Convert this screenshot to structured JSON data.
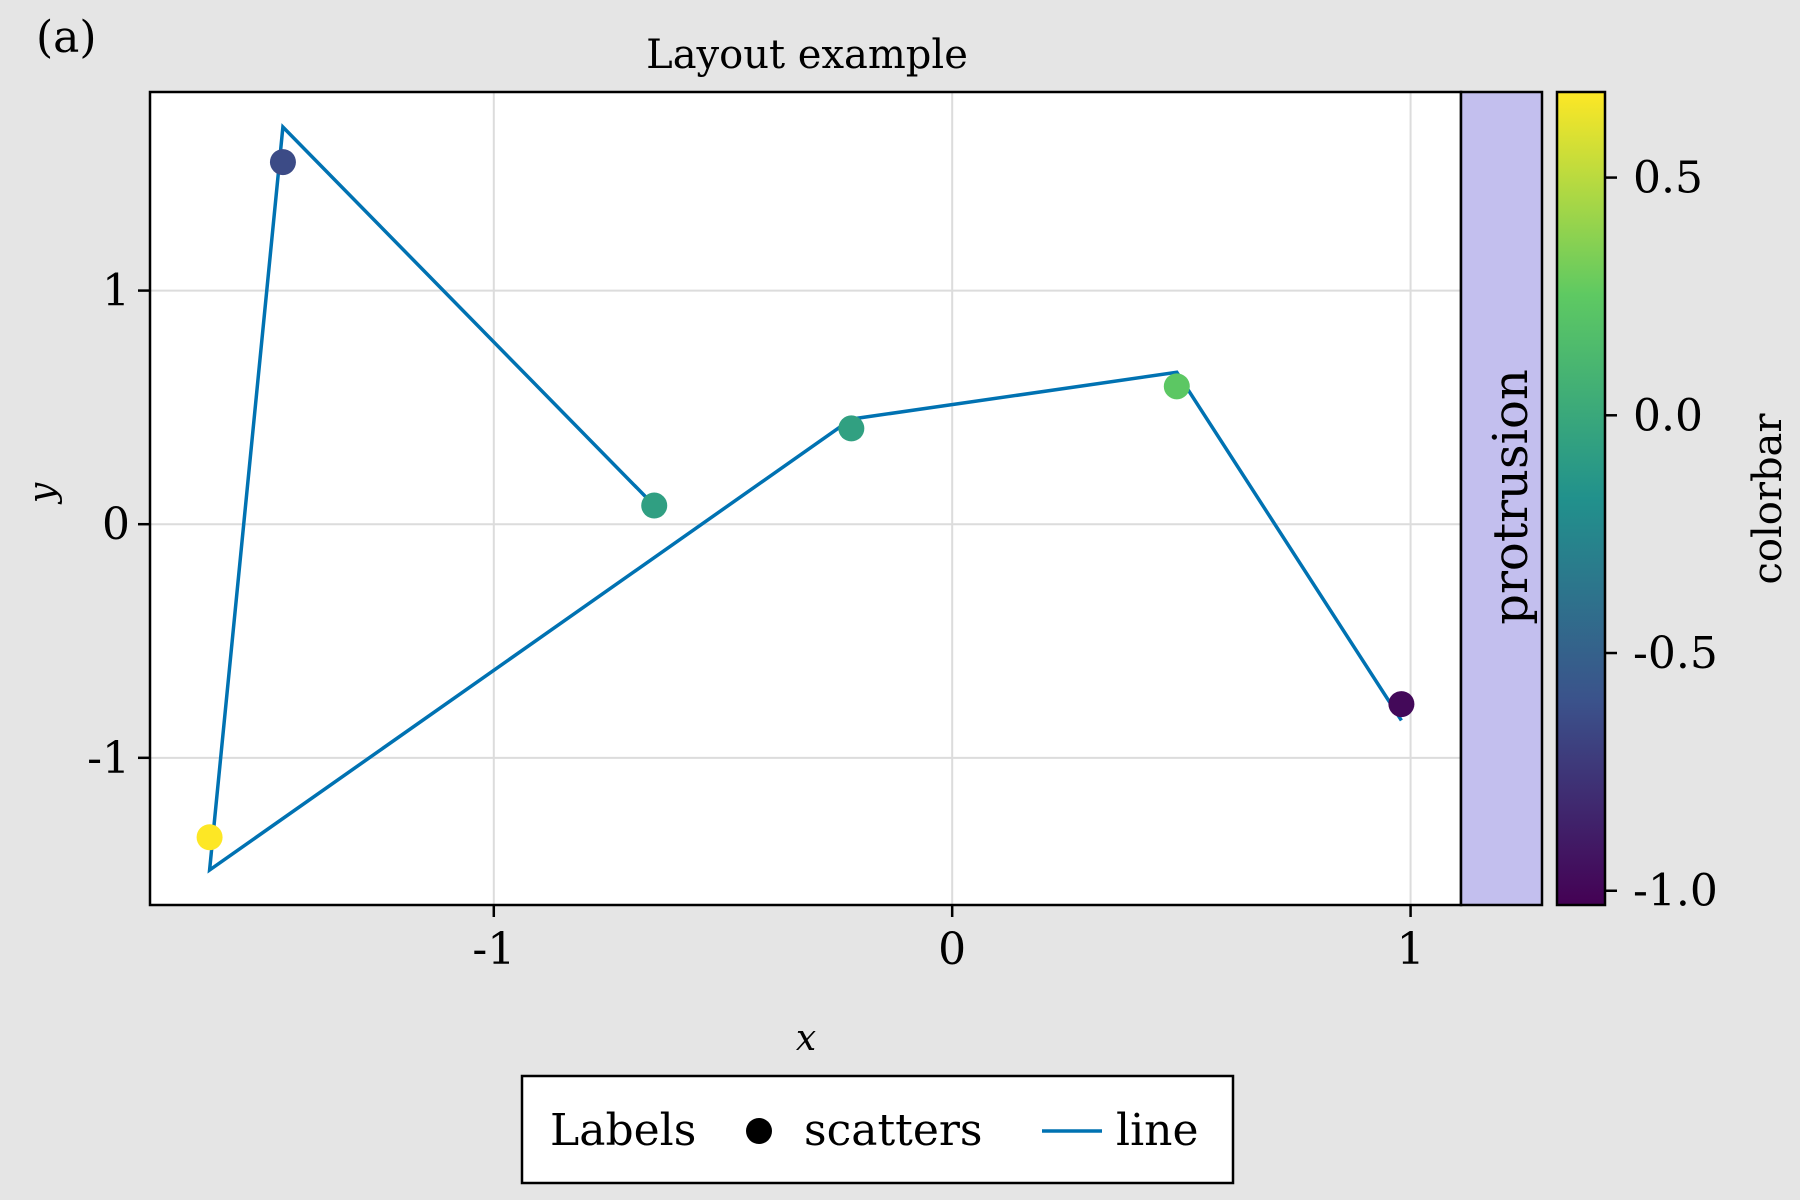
{
  "panel_label": "(a)",
  "protrusion_label": "protrusion",
  "colors": {
    "background": "#e5e5e5",
    "plot_background": "#ffffff",
    "grid": "#dcdcdc",
    "line": "#0072b2",
    "protrusion_fill": "#c3bfee",
    "colormap": "viridis",
    "colormap_stops": [
      "#440154",
      "#3b528b",
      "#21918c",
      "#5ec962",
      "#fde725"
    ]
  },
  "chart_data": {
    "type": "scatter",
    "title": "Layout example",
    "xlabel": "x",
    "ylabel": "y",
    "xlim": [
      -1.75,
      1.11
    ],
    "ylim": [
      -1.63,
      1.85
    ],
    "xticks": [
      -1,
      0,
      1
    ],
    "xtick_labels": [
      "-1",
      "0",
      "1"
    ],
    "yticks": [
      -1,
      0,
      1
    ],
    "ytick_labels": [
      "-1",
      "0",
      "1"
    ],
    "grid": true,
    "series": [
      {
        "name": "scatters",
        "kind": "scatter",
        "x": [
          -1.62,
          -1.46,
          -0.65,
          -0.22,
          0.49,
          0.98
        ],
        "y": [
          -1.34,
          1.55,
          0.08,
          0.41,
          0.59,
          -0.77
        ],
        "color_values": [
          0.68,
          -0.64,
          -0.07,
          -0.06,
          0.24,
          -0.99
        ]
      },
      {
        "name": "line",
        "kind": "line",
        "x": [
          -0.65,
          -1.46,
          -1.62,
          -0.22,
          0.49,
          0.98
        ],
        "y": [
          0.08,
          1.7,
          -1.48,
          0.45,
          0.65,
          -0.84
        ]
      }
    ],
    "colorbar": {
      "label": "colorbar",
      "range": [
        -1.03,
        0.68
      ],
      "ticks": [
        -1.0,
        -0.5,
        0.0,
        0.5
      ],
      "tick_labels": [
        "-1.0",
        "-0.5",
        "0.0",
        "0.5"
      ]
    },
    "legend": {
      "title": "Labels",
      "placement": "bottom",
      "entries": [
        {
          "label": "scatters",
          "kind": "marker"
        },
        {
          "label": "line",
          "kind": "line"
        }
      ]
    }
  }
}
